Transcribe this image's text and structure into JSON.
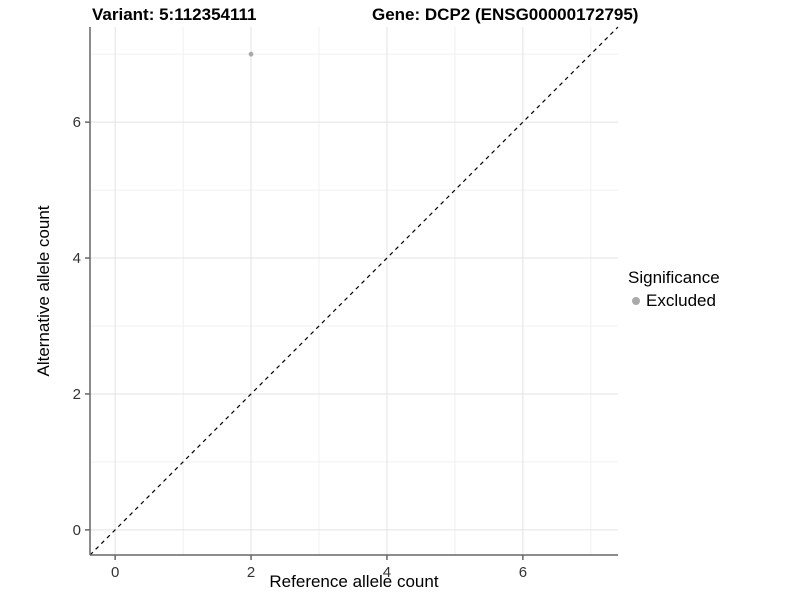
{
  "chart_data": {
    "type": "scatter",
    "title_left": "Variant: 5:112354111",
    "title_right": "Gene: DCP2 (ENSG00000172795)",
    "xlabel": "Reference allele count",
    "ylabel": "Alternative allele count",
    "xlim": [
      -0.37,
      7.4
    ],
    "ylim": [
      -0.37,
      7.4
    ],
    "x_ticks": [
      0,
      2,
      4,
      6
    ],
    "y_ticks": [
      0,
      2,
      4,
      6
    ],
    "x_minor_ticks": [
      1,
      3,
      5,
      7
    ],
    "y_minor_ticks": [
      1,
      3,
      5,
      7
    ],
    "grid": "major+minor",
    "reference_line": {
      "type": "identity",
      "equation": "y = x",
      "style": "dashed",
      "color": "#000000"
    },
    "series": [
      {
        "name": "Excluded",
        "color": "#aaaaaa",
        "points": [
          {
            "x": 2,
            "y": 7
          }
        ]
      }
    ],
    "legend": {
      "title": "Significance",
      "position": "right",
      "items": [
        {
          "label": "Excluded",
          "color": "#aaaaaa"
        }
      ]
    },
    "colors": {
      "grid_major": "#e3e3e3",
      "grid_minor": "#f0f0f0",
      "axis": "#666666",
      "tick_text": "#333333",
      "background": "#ffffff"
    }
  }
}
